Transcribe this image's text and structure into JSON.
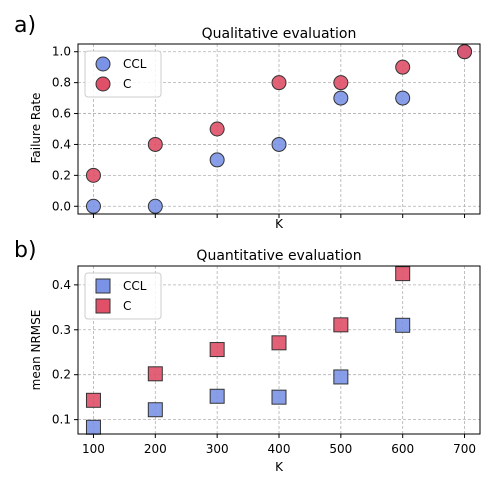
{
  "colors": {
    "ccl": "#7b93e6",
    "c": "#e05068",
    "edge": "#333333"
  },
  "chart_data": [
    {
      "panel_label": "a)",
      "type": "scatter",
      "title": "Qualitative evaluation",
      "xlabel": "K",
      "ylabel": "Failure Rate",
      "x": [
        100,
        200,
        300,
        400,
        500,
        600,
        700
      ],
      "xlim": [
        75,
        725
      ],
      "ylim": [
        -0.05,
        1.05
      ],
      "yticks": [
        "0.0",
        "0.2",
        "0.4",
        "0.6",
        "0.8",
        "1.0"
      ],
      "xticks_labeled": false,
      "marker": "circle",
      "grid": true,
      "legend": "top-left",
      "series": [
        {
          "name": "CCL",
          "y": [
            0.0,
            0.0,
            0.3,
            0.4,
            0.7,
            0.7,
            1.0
          ]
        },
        {
          "name": "C",
          "y": [
            0.2,
            0.4,
            0.5,
            0.8,
            0.8,
            0.9,
            1.0
          ]
        }
      ]
    },
    {
      "panel_label": "b)",
      "type": "scatter",
      "title": "Quantitative evaluation",
      "xlabel": "K",
      "ylabel": "mean NRMSE",
      "x": [
        100,
        200,
        300,
        400,
        500,
        600
      ],
      "xlim": [
        75,
        725
      ],
      "ylim": [
        0.068,
        0.442
      ],
      "xticks": [
        "100",
        "200",
        "300",
        "400",
        "500",
        "600",
        "700"
      ],
      "yticks": [
        "0.1",
        "0.2",
        "0.3",
        "0.4"
      ],
      "marker": "square",
      "grid": true,
      "legend": "top-left",
      "series": [
        {
          "name": "CCL",
          "y": [
            0.083,
            0.122,
            0.152,
            0.15,
            0.195,
            0.31
          ]
        },
        {
          "name": "C",
          "y": [
            0.143,
            0.202,
            0.256,
            0.271,
            0.311,
            0.425
          ]
        }
      ]
    }
  ]
}
